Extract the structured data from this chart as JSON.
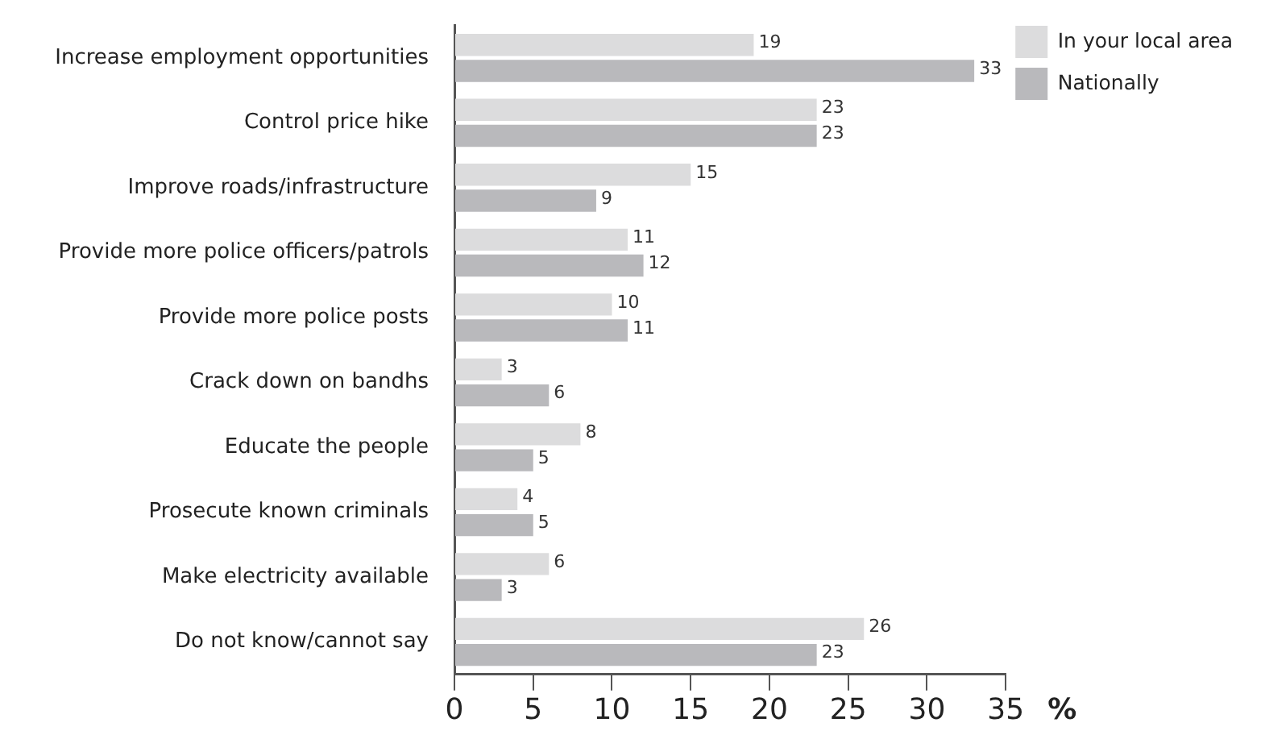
{
  "chart_data": {
    "type": "bar",
    "orientation": "horizontal",
    "xlabel": "%",
    "categories": [
      "Increase employment opportunities",
      "Control price hike",
      "Improve roads/infrastructure",
      "Provide more police officers/patrols",
      "Provide more police posts",
      "Crack down on bandhs",
      "Educate the people",
      "Prosecute known criminals",
      "Make electricity available",
      "Do not know/cannot say"
    ],
    "series": [
      {
        "name": "In your local area",
        "color": "#dcdcdd",
        "values": [
          19,
          23,
          15,
          11,
          10,
          3,
          8,
          4,
          6,
          26
        ]
      },
      {
        "name": "Nationally",
        "color": "#b9b9bc",
        "values": [
          33,
          23,
          9,
          12,
          11,
          6,
          5,
          5,
          3,
          23
        ]
      }
    ],
    "xlim": [
      0,
      35
    ],
    "xticks": [
      0,
      5,
      10,
      15,
      20,
      25,
      30,
      35
    ],
    "grid": false,
    "legend": "top right",
    "data_labels": true
  }
}
